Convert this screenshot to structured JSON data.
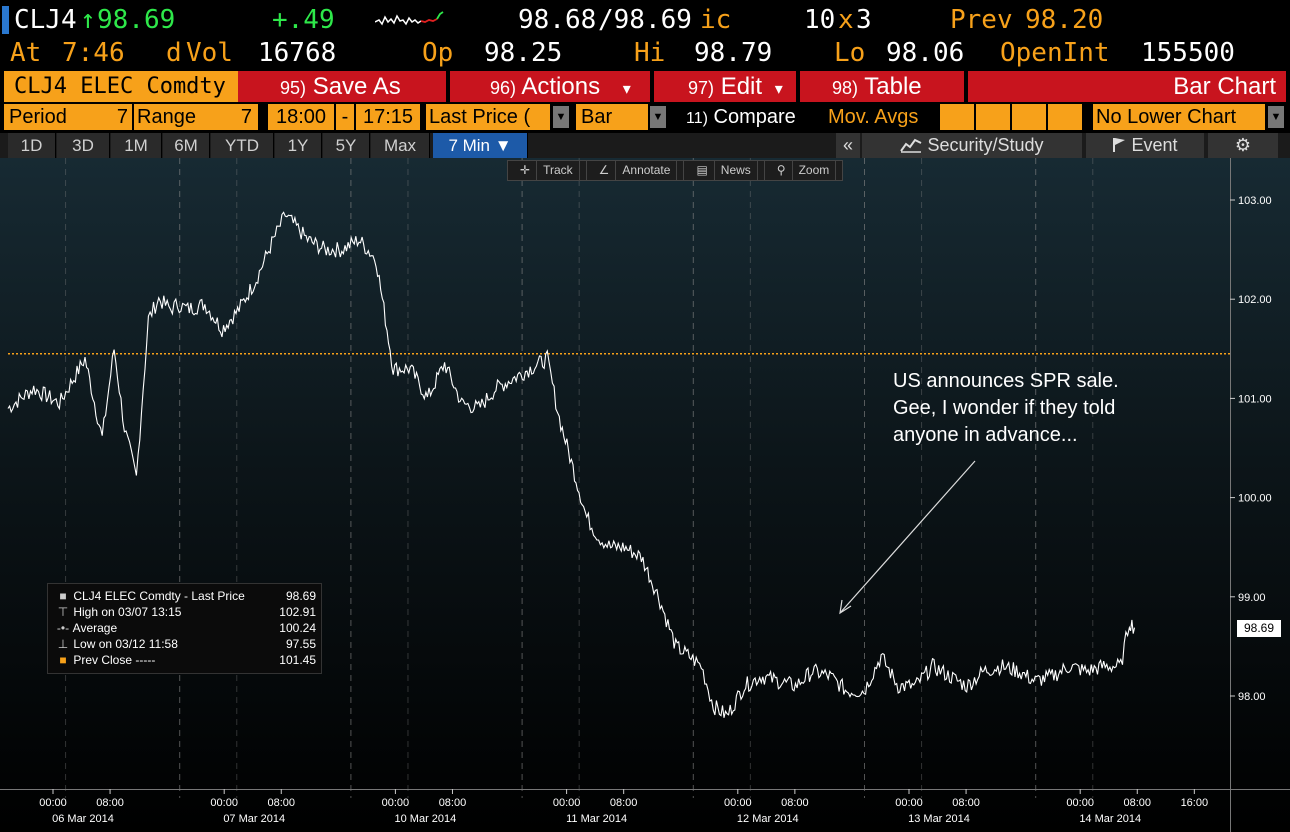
{
  "header": {
    "ticker": "CLJ4",
    "arrow": "↑",
    "last": "98.69",
    "change": "+.49",
    "bid_ask": "98.68",
    "ask": "/98.69",
    "ask_suffix": "ic",
    "size_bid": "10",
    "size_x": "x",
    "size_ask": "3",
    "prev_label": "Prev",
    "prev": "98.20",
    "at_label": "At",
    "time": "7:46",
    "dvol_label": "d",
    "vol_label": "Vol",
    "vol": "16768",
    "op_label": "Op",
    "op": "98.25",
    "hi_label": "Hi",
    "hi": "98.79",
    "lo_label": "Lo",
    "lo": "98.06",
    "oi_label": "OpenInt",
    "oi": "155500"
  },
  "menu": {
    "security": "CLJ4 ELEC Comdty",
    "save_num": "95)",
    "save": "Save As",
    "actions_num": "96)",
    "actions": "Actions",
    "edit_num": "97)",
    "edit": "Edit",
    "table_num": "98)",
    "table": "Table",
    "title": "Bar Chart",
    "dropdown_glyph": "▾"
  },
  "options": {
    "period_label": "Period",
    "period": "7",
    "range_label": "Range",
    "range": "7",
    "start": "18:00",
    "dash": "-",
    "end": "17:15",
    "price_field": "Last Price (",
    "chart_type": "Bar",
    "compare_num": "11)",
    "compare": "Compare",
    "mov_avgs": "Mov. Avgs",
    "lower_chart": "No Lower Chart"
  },
  "tabs": [
    "1D",
    "3D",
    "1M",
    "6M",
    "YTD",
    "1Y",
    "5Y",
    "Max",
    "7 Min ▼"
  ],
  "right_buttons": {
    "collapse": "«",
    "security_study": "Security/Study",
    "event": "Event",
    "settings_glyph": "⚙"
  },
  "chart_tools": [
    "Track",
    "Annotate",
    "News",
    "Zoom"
  ],
  "legend": {
    "title": "CLJ4 ELEC Comdty - Last Price",
    "title_value": "98.69",
    "high_label": "High on 03/07 13:15",
    "high_value": "102.91",
    "avg_label": "Average",
    "avg_value": "100.24",
    "low_label": "Low on 03/12 11:58",
    "low_value": "97.55",
    "prev_label": "Prev Close -----",
    "prev_value": "101.45"
  },
  "annotation": "US announces SPR sale.\nGee, I wonder if they told\nanyone in advance...",
  "last_price_tag": "98.69",
  "colors": {
    "amber": "#f7a11a",
    "menu_red": "#c8141e",
    "up_green": "#2ee84a",
    "active_tab": "#1d5aa8",
    "prev_close_line": "#f7a11a"
  },
  "chart_data": {
    "type": "line",
    "title": "",
    "y_ticks": [
      "103.00",
      "102.00",
      "101.00",
      "100.00",
      "99.00",
      "98.00"
    ],
    "ylim": [
      97.4,
      103.4
    ],
    "prev_close": 101.45,
    "x_day_labels": [
      "06 Mar 2014",
      "07 Mar 2014",
      "10 Mar 2014",
      "11 Mar 2014",
      "12 Mar 2014",
      "13 Mar 2014",
      "14 Mar 2014"
    ],
    "x_time_ticks": [
      "00:00",
      "08:00",
      "00:00",
      "08:00",
      "00:00",
      "08:00",
      "00:00",
      "08:00",
      "00:00",
      "08:00",
      "00:00",
      "08:00",
      "00:00",
      "08:00",
      "16:00"
    ],
    "x_time_tick_days": [
      0,
      0,
      1,
      1,
      2,
      2,
      3,
      3,
      4,
      4,
      5,
      5,
      6,
      6,
      6
    ],
    "x_time_tick_hours": [
      0,
      8,
      0,
      8,
      0,
      8,
      0,
      8,
      0,
      8,
      0,
      8,
      0,
      8,
      16
    ],
    "series": [
      {
        "name": "CLJ4 ELEC Comdty - Last Price",
        "t_days": [
          0.0,
          0.15,
          0.3,
          0.45,
          0.55,
          0.62,
          0.68,
          0.75,
          0.82,
          0.88,
          0.95,
          0.99,
          1.05,
          1.15,
          1.25,
          1.35,
          1.45,
          1.55,
          1.62,
          1.75,
          1.85,
          1.95,
          2.05,
          2.15,
          2.25,
          2.35,
          2.45,
          2.55,
          2.65,
          2.75,
          2.85,
          2.95,
          3.05,
          3.15,
          3.22,
          3.3,
          3.38,
          3.45,
          3.52,
          3.6,
          3.7,
          3.8,
          3.9,
          3.98,
          4.05,
          4.12,
          4.2,
          4.3,
          4.4,
          4.5,
          4.6,
          4.7,
          4.8,
          4.9,
          5.0,
          5.1,
          5.2,
          5.3,
          5.4,
          5.5,
          5.6,
          5.7,
          5.8,
          5.9,
          6.0,
          6.1,
          6.2,
          6.3,
          6.4,
          6.5,
          6.55,
          6.58
        ],
        "values": [
          100.9,
          101.1,
          100.95,
          101.4,
          100.6,
          101.5,
          100.7,
          100.2,
          101.8,
          102.0,
          101.9,
          101.95,
          101.9,
          101.95,
          101.7,
          101.9,
          102.2,
          102.6,
          102.85,
          102.6,
          102.5,
          102.5,
          102.6,
          102.4,
          101.3,
          101.3,
          101.0,
          101.35,
          100.95,
          100.9,
          101.1,
          101.2,
          101.3,
          101.4,
          100.8,
          100.3,
          99.8,
          99.6,
          99.5,
          99.5,
          99.4,
          99.0,
          98.5,
          98.4,
          98.3,
          97.9,
          97.8,
          98.1,
          98.2,
          98.15,
          98.1,
          98.25,
          98.2,
          98.05,
          98.05,
          98.4,
          98.1,
          98.1,
          98.3,
          98.2,
          98.1,
          98.25,
          98.3,
          98.25,
          98.15,
          98.2,
          98.3,
          98.25,
          98.3,
          98.3,
          98.75,
          98.69
        ]
      }
    ]
  }
}
